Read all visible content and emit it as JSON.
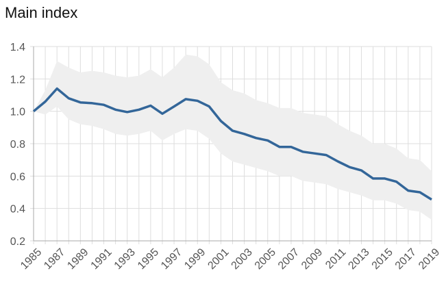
{
  "chart_data": {
    "type": "line",
    "title": "Main index",
    "xlabel": "",
    "ylabel": "",
    "xlim": [
      1985,
      2019
    ],
    "ylim": [
      0.2,
      1.4
    ],
    "grid": true,
    "legend": "none",
    "colors": {
      "line": "#336699",
      "band": "#efefef",
      "grid": "#dddddd"
    },
    "yticks": [
      "0.2",
      "0.4",
      "0.6",
      "0.8",
      "1.0",
      "1.2",
      "1.4"
    ],
    "xticks": [
      "1985",
      "1987",
      "1989",
      "1991",
      "1993",
      "1995",
      "1997",
      "1999",
      "2001",
      "2003",
      "2005",
      "2007",
      "2009",
      "2011",
      "2013",
      "2015",
      "2017",
      "2019"
    ],
    "x": [
      1985,
      1986,
      1987,
      1988,
      1989,
      1990,
      1991,
      1992,
      1993,
      1994,
      1995,
      1996,
      1997,
      1998,
      1999,
      2000,
      2001,
      2002,
      2003,
      2004,
      2005,
      2006,
      2007,
      2008,
      2009,
      2010,
      2011,
      2012,
      2013,
      2014,
      2015,
      2016,
      2017,
      2018,
      2019
    ],
    "series": [
      {
        "values": [
          1.0,
          1.06,
          1.14,
          1.08,
          1.055,
          1.05,
          1.04,
          1.01,
          0.995,
          1.01,
          1.035,
          0.985,
          1.03,
          1.075,
          1.065,
          1.03,
          0.94,
          0.88,
          0.86,
          0.835,
          0.82,
          0.78,
          0.78,
          0.75,
          0.74,
          0.73,
          0.69,
          0.655,
          0.635,
          0.585,
          0.585,
          0.565,
          0.51,
          0.5,
          0.455
        ]
      }
    ],
    "band": {
      "upper": [
        1.0,
        1.13,
        1.31,
        1.27,
        1.24,
        1.25,
        1.24,
        1.22,
        1.21,
        1.22,
        1.26,
        1.21,
        1.27,
        1.35,
        1.34,
        1.29,
        1.18,
        1.13,
        1.11,
        1.07,
        1.05,
        1.02,
        1.02,
        0.99,
        0.98,
        0.97,
        0.92,
        0.88,
        0.85,
        0.8,
        0.8,
        0.77,
        0.71,
        0.7,
        0.63
      ],
      "lower": [
        1.0,
        0.98,
        1.03,
        0.95,
        0.92,
        0.91,
        0.89,
        0.86,
        0.85,
        0.86,
        0.88,
        0.82,
        0.86,
        0.89,
        0.88,
        0.83,
        0.74,
        0.69,
        0.67,
        0.65,
        0.63,
        0.6,
        0.6,
        0.57,
        0.56,
        0.55,
        0.52,
        0.5,
        0.48,
        0.45,
        0.45,
        0.43,
        0.39,
        0.38,
        0.33
      ]
    }
  }
}
